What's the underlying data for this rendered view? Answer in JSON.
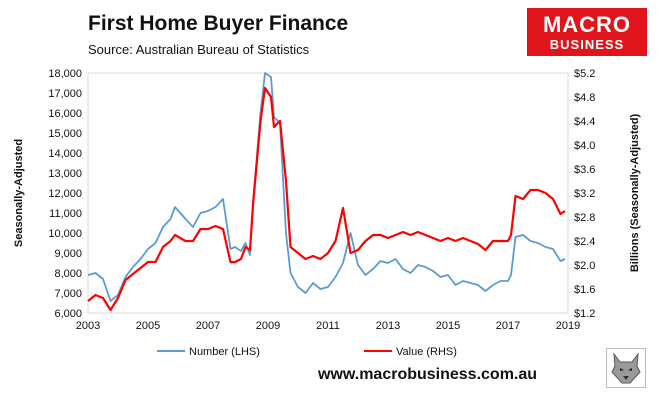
{
  "header": {
    "title": "First Home Buyer Finance",
    "subtitle": "Source: Australian Bureau of Statistics"
  },
  "logo": {
    "line1": "MACRO",
    "line2": "BUSINESS"
  },
  "footer": {
    "website": "www.macrobusiness.com.au"
  },
  "icons": {
    "logo_mark": "wolf-head-icon"
  },
  "colors": {
    "number_series": "#5b9bd5",
    "value_series": "#ff0000",
    "logo_bg": "#e1141b"
  },
  "chart_data": {
    "type": "line",
    "title": "First Home Buyer Finance",
    "ylabel_left": "Seasonally-Adjusted",
    "ylabel_right": "Billions (Seasonally-Adjusted)",
    "xlim": [
      2003,
      2019
    ],
    "ylim_left": [
      6000,
      18000
    ],
    "ylim_right": [
      1.2,
      5.2
    ],
    "x_ticks": [
      2003,
      2005,
      2007,
      2009,
      2011,
      2013,
      2015,
      2017,
      2019
    ],
    "x_tick_labels": [
      "2003",
      "2005",
      "2007",
      "2009",
      "2011",
      "2013",
      "2015",
      "2017",
      "2019"
    ],
    "y_left_ticks": [
      6000,
      7000,
      8000,
      9000,
      10000,
      11000,
      12000,
      13000,
      14000,
      15000,
      16000,
      17000,
      18000
    ],
    "y_left_tick_labels": [
      "6,000",
      "7,000",
      "8,000",
      "9,000",
      "10,000",
      "11,000",
      "12,000",
      "13,000",
      "14,000",
      "15,000",
      "16,000",
      "17,000",
      "18,000"
    ],
    "y_right_ticks": [
      1.2,
      1.6,
      2.0,
      2.4,
      2.8,
      3.2,
      3.6,
      4.0,
      4.4,
      4.8,
      5.2
    ],
    "y_right_tick_labels": [
      "$1.2",
      "$1.6",
      "$2.0",
      "$2.4",
      "$2.8",
      "$3.2",
      "$3.6",
      "$4.0",
      "$4.4",
      "$4.8",
      "$5.2"
    ],
    "grid": false,
    "legend_position": "bottom",
    "series": [
      {
        "name": "Number (LHS)",
        "axis": "left",
        "color": "#5b9bd5",
        "x": [
          2003.0,
          2003.25,
          2003.5,
          2003.75,
          2004.0,
          2004.25,
          2004.5,
          2004.75,
          2005.0,
          2005.25,
          2005.5,
          2005.75,
          2005.9,
          2006.25,
          2006.5,
          2006.75,
          2007.0,
          2007.25,
          2007.5,
          2007.75,
          2007.9,
          2008.1,
          2008.25,
          2008.4,
          2008.5,
          2008.75,
          2008.9,
          2009.1,
          2009.2,
          2009.4,
          2009.6,
          2009.75,
          2010.0,
          2010.25,
          2010.5,
          2010.75,
          2011.0,
          2011.25,
          2011.5,
          2011.75,
          2012.0,
          2012.25,
          2012.5,
          2012.75,
          2013.0,
          2013.25,
          2013.5,
          2013.75,
          2014.0,
          2014.25,
          2014.5,
          2014.75,
          2015.0,
          2015.25,
          2015.5,
          2015.75,
          2016.0,
          2016.25,
          2016.5,
          2016.75,
          2017.0,
          2017.1,
          2017.25,
          2017.5,
          2017.75,
          2018.0,
          2018.25,
          2018.5,
          2018.75,
          2018.9
        ],
        "values": [
          7900,
          8000,
          7700,
          6600,
          6900,
          7800,
          8300,
          8700,
          9200,
          9500,
          10300,
          10700,
          11300,
          10700,
          10300,
          11000,
          11100,
          11300,
          11700,
          9200,
          9300,
          9100,
          9500,
          8900,
          11500,
          16000,
          18000,
          17800,
          15800,
          15500,
          10000,
          8000,
          7300,
          7000,
          7500,
          7200,
          7300,
          7800,
          8500,
          10000,
          8400,
          7900,
          8200,
          8600,
          8500,
          8700,
          8200,
          8000,
          8400,
          8300,
          8100,
          7800,
          7900,
          7400,
          7600,
          7500,
          7400,
          7100,
          7400,
          7600,
          7600,
          7900,
          9800,
          9900,
          9600,
          9500,
          9300,
          9200,
          8600,
          8700
        ]
      },
      {
        "name": "Value (RHS)",
        "axis": "right",
        "color": "#ff0000",
        "x": [
          2003.0,
          2003.25,
          2003.5,
          2003.75,
          2004.0,
          2004.25,
          2004.5,
          2004.75,
          2005.0,
          2005.25,
          2005.5,
          2005.75,
          2005.9,
          2006.25,
          2006.5,
          2006.75,
          2007.0,
          2007.25,
          2007.5,
          2007.75,
          2007.9,
          2008.1,
          2008.25,
          2008.4,
          2008.5,
          2008.75,
          2008.9,
          2009.1,
          2009.2,
          2009.4,
          2009.6,
          2009.75,
          2010.0,
          2010.25,
          2010.5,
          2010.75,
          2011.0,
          2011.25,
          2011.5,
          2011.75,
          2012.0,
          2012.25,
          2012.5,
          2012.75,
          2013.0,
          2013.25,
          2013.5,
          2013.75,
          2014.0,
          2014.25,
          2014.5,
          2014.75,
          2015.0,
          2015.25,
          2015.5,
          2015.75,
          2016.0,
          2016.25,
          2016.5,
          2016.75,
          2017.0,
          2017.1,
          2017.25,
          2017.5,
          2017.75,
          2018.0,
          2018.25,
          2018.5,
          2018.75,
          2018.9
        ],
        "values": [
          1.4,
          1.5,
          1.45,
          1.25,
          1.45,
          1.75,
          1.85,
          1.95,
          2.05,
          2.05,
          2.3,
          2.4,
          2.5,
          2.4,
          2.4,
          2.6,
          2.6,
          2.65,
          2.6,
          2.05,
          2.05,
          2.1,
          2.3,
          2.25,
          3.0,
          4.4,
          4.95,
          4.8,
          4.3,
          4.4,
          3.4,
          2.3,
          2.2,
          2.1,
          2.15,
          2.1,
          2.2,
          2.4,
          2.95,
          2.2,
          2.25,
          2.4,
          2.5,
          2.5,
          2.45,
          2.5,
          2.55,
          2.5,
          2.55,
          2.5,
          2.45,
          2.4,
          2.45,
          2.4,
          2.45,
          2.4,
          2.35,
          2.25,
          2.4,
          2.4,
          2.4,
          2.5,
          3.15,
          3.1,
          3.25,
          3.25,
          3.2,
          3.1,
          2.85,
          2.9
        ]
      }
    ]
  }
}
